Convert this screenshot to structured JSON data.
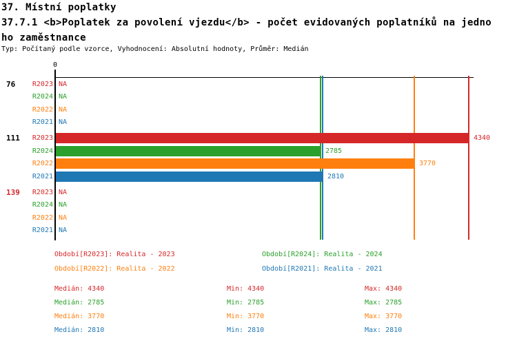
{
  "header": {
    "title_line1": "37. Místní poplatky",
    "title_line2": "37.7.1 <b>Poplatek za povolení vjezdu</b> - počet evidovaných poplatníků na jedno",
    "title_line3": "ho zaměstnance",
    "subtitle": "Typ: Počítaný podle vzorce, Vyhodnocení: Absolutní hodnoty, Průměr: Medián"
  },
  "colors": {
    "series": {
      "R2023": "#d62728",
      "R2024": "#2ca02c",
      "R2022": "#ff7f0e",
      "R2021": "#1f77b4"
    },
    "axis": "#000000",
    "group_label_normal": "#000000",
    "group_label_highlight": "#d62728"
  },
  "chart_data": {
    "type": "bar",
    "orientation": "horizontal",
    "xlim": [
      0,
      4390
    ],
    "zero_label": "0",
    "na_text": "NA",
    "series_order": [
      "R2023",
      "R2024",
      "R2022",
      "R2021"
    ],
    "groups": [
      {
        "label": "76",
        "highlight": false,
        "rows": [
          {
            "series": "R2023",
            "value": null
          },
          {
            "series": "R2024",
            "value": null
          },
          {
            "series": "R2022",
            "value": null
          },
          {
            "series": "R2021",
            "value": null
          }
        ]
      },
      {
        "label": "111",
        "highlight": false,
        "rows": [
          {
            "series": "R2023",
            "value": 4340
          },
          {
            "series": "R2024",
            "value": 2785
          },
          {
            "series": "R2022",
            "value": 3770
          },
          {
            "series": "R2021",
            "value": 2810
          }
        ]
      },
      {
        "label": "139",
        "highlight": true,
        "rows": [
          {
            "series": "R2023",
            "value": null
          },
          {
            "series": "R2024",
            "value": null
          },
          {
            "series": "R2022",
            "value": null
          },
          {
            "series": "R2021",
            "value": null
          }
        ]
      }
    ],
    "median_lines": [
      {
        "series": "R2023",
        "value": 4340
      },
      {
        "series": "R2024",
        "value": 2785
      },
      {
        "series": "R2022",
        "value": 3770
      },
      {
        "series": "R2021",
        "value": 2810
      }
    ]
  },
  "legend": {
    "items": [
      {
        "series": "R2023",
        "label": "Období[R2023]: Realita - 2023",
        "col": 0,
        "row": 0
      },
      {
        "series": "R2024",
        "label": "Období[R2024]: Realita - 2024",
        "col": 1,
        "row": 0
      },
      {
        "series": "R2022",
        "label": "Období[R2022]: Realita - 2022",
        "col": 0,
        "row": 1
      },
      {
        "series": "R2021",
        "label": "Období[R2021]: Realita - 2021",
        "col": 1,
        "row": 1
      }
    ]
  },
  "stats": {
    "median_label": "Medián",
    "min_label": "Min",
    "max_label": "Max",
    "rows": [
      {
        "series": "R2023",
        "median": 4340,
        "min": 4340,
        "max": 4340
      },
      {
        "series": "R2024",
        "median": 2785,
        "min": 2785,
        "max": 2785
      },
      {
        "series": "R2022",
        "median": 3770,
        "min": 3770,
        "max": 3770
      },
      {
        "series": "R2021",
        "median": 2810,
        "min": 2810,
        "max": 2810
      }
    ]
  }
}
